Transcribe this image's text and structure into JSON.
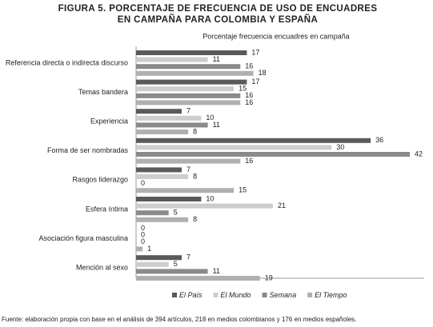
{
  "chart_data": {
    "type": "bar",
    "orientation": "horizontal",
    "title": [
      "FIGURA 5. PORCENTAJE DE FRECUENCIA DE USO DE ENCUADRES",
      "EN CAMPAÑA PARA COLOMBIA Y ESPAÑA"
    ],
    "subtitle": "Porcentaje frecuencia encuadres en campaña",
    "categories": [
      "Referencia directa o indirecta discurso",
      "Temas bandera",
      "Experiencia",
      "Forma de ser nombradas",
      "Rasgos liderazgo",
      "Esfera íntima",
      "Asociación figura masculina",
      "Mención al sexo"
    ],
    "series": [
      {
        "name": "El País",
        "color": "#5a5a5a",
        "values": [
          17,
          17,
          7,
          36,
          7,
          10,
          0,
          7
        ]
      },
      {
        "name": "El Mundo",
        "color": "#cdcdcd",
        "values": [
          11,
          15,
          10,
          30,
          8,
          21,
          0,
          5
        ]
      },
      {
        "name": "Semana",
        "color": "#8a8a8a",
        "values": [
          16,
          16,
          11,
          42,
          0,
          5,
          0,
          11
        ]
      },
      {
        "name": "El Tiempo",
        "color": "#b0b0b0",
        "values": [
          18,
          16,
          8,
          16,
          15,
          8,
          1,
          19
        ]
      }
    ],
    "legend": "bottom",
    "footnote": "Fuente: elaboración propia con base en el análisis de 394 artículos, 218 en medios colombianos y 176 en medios españoles."
  }
}
